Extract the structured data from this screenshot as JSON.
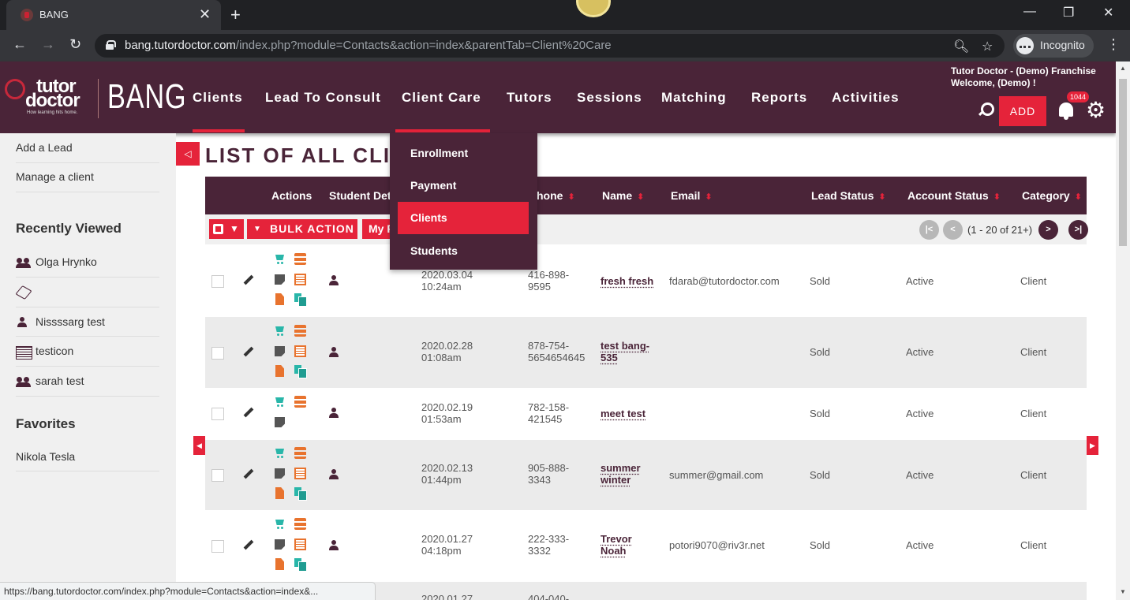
{
  "browser": {
    "tab_title": "BANG",
    "tab_close": "✕",
    "new_tab": "+",
    "url_host": "bang.tutordoctor.com",
    "url_path": "/index.php?module=Contacts&action=index&parentTab=Client%20Care",
    "incognito_label": "Incognito",
    "status_url": "https://bang.tutordoctor.com/index.php?module=Contacts&action=index&..."
  },
  "header": {
    "logo_line1": "tutor",
    "logo_line2": "doctor",
    "logo_tagline": "How learning hits home.",
    "app_name": "BANG",
    "nav": [
      "Clients",
      "Lead To Consult",
      "Client Care",
      "Tutors",
      "Sessions",
      "Matching",
      "Reports",
      "Activities"
    ],
    "franchise": "Tutor Doctor - (Demo) Franchise",
    "welcome": "Welcome,  (Demo) !",
    "add_label": "ADD",
    "notification_count": "1044"
  },
  "dropdown": {
    "items": [
      "Enrollment",
      "Payment",
      "Clients",
      "Students"
    ],
    "active": "Clients"
  },
  "sidebar": {
    "links": [
      "Add a Lead",
      "Manage a client"
    ],
    "recently_viewed_title": "Recently Viewed",
    "recent": [
      {
        "label": "Olga Hrynko",
        "icon": "people-icon"
      },
      {
        "label": "",
        "icon": "cube-icon"
      },
      {
        "label": "Nissssarg test",
        "icon": "person-icon"
      },
      {
        "label": "testicon",
        "icon": "calendar-icon"
      },
      {
        "label": "sarah test",
        "icon": "people-icon"
      }
    ],
    "favorites_title": "Favorites",
    "favorites": [
      "Nikola Tesla"
    ]
  },
  "main": {
    "title": "LIST OF ALL CLIE",
    "columns": {
      "actions": "Actions",
      "student_details": "Student Deta",
      "phone": "hone",
      "name": "Name",
      "email": "Email",
      "lead_status": "Lead Status",
      "account_status": "Account Status",
      "category": "Category"
    },
    "bulk_action": "BULK ACTION",
    "my_filter": "My F",
    "pagination_text": "(1 - 20 of 21+)",
    "rows": [
      {
        "date": "2020.03.04",
        "time": "10:24am",
        "phone1": "416-898-",
        "phone2": "9595",
        "name1": "fresh fresh",
        "name2": "",
        "email": "fdarab@tutordoctor.com",
        "lead_status": "Sold",
        "account_status": "Active",
        "category": "Client"
      },
      {
        "date": "2020.02.28",
        "time": "01:08am",
        "phone1": "878-754-",
        "phone2": "5654654645",
        "name1": "test bang-",
        "name2": "535",
        "email": "",
        "lead_status": "Sold",
        "account_status": "Active",
        "category": "Client"
      },
      {
        "date": "2020.02.19",
        "time": "01:53am",
        "phone1": "782-158-",
        "phone2": "421545",
        "name1": "meet test",
        "name2": "",
        "email": "",
        "lead_status": "Sold",
        "account_status": "Active",
        "category": "Client"
      },
      {
        "date": "2020.02.13",
        "time": "01:44pm",
        "phone1": "905-888-",
        "phone2": "3343",
        "name1": "summer",
        "name2": "winter",
        "email": "summer@gmail.com",
        "lead_status": "Sold",
        "account_status": "Active",
        "category": "Client"
      },
      {
        "date": "2020.01.27",
        "time": "04:18pm",
        "phone1": "222-333-",
        "phone2": "3332",
        "name1": "Trevor",
        "name2": "Noah",
        "email": "potori9070@riv3r.net",
        "lead_status": "Sold",
        "account_status": "Active",
        "category": "Client"
      },
      {
        "date": "2020.01.27",
        "time": "",
        "phone1": "404-040-",
        "phone2": "",
        "name1": "",
        "name2": "",
        "email": "",
        "lead_status": "",
        "account_status": "",
        "category": ""
      }
    ]
  },
  "colors": {
    "brand_plum": "#4a2438",
    "accent_red": "#e5233a",
    "icon_teal": "#29b6a9",
    "icon_orange": "#e8732e"
  }
}
